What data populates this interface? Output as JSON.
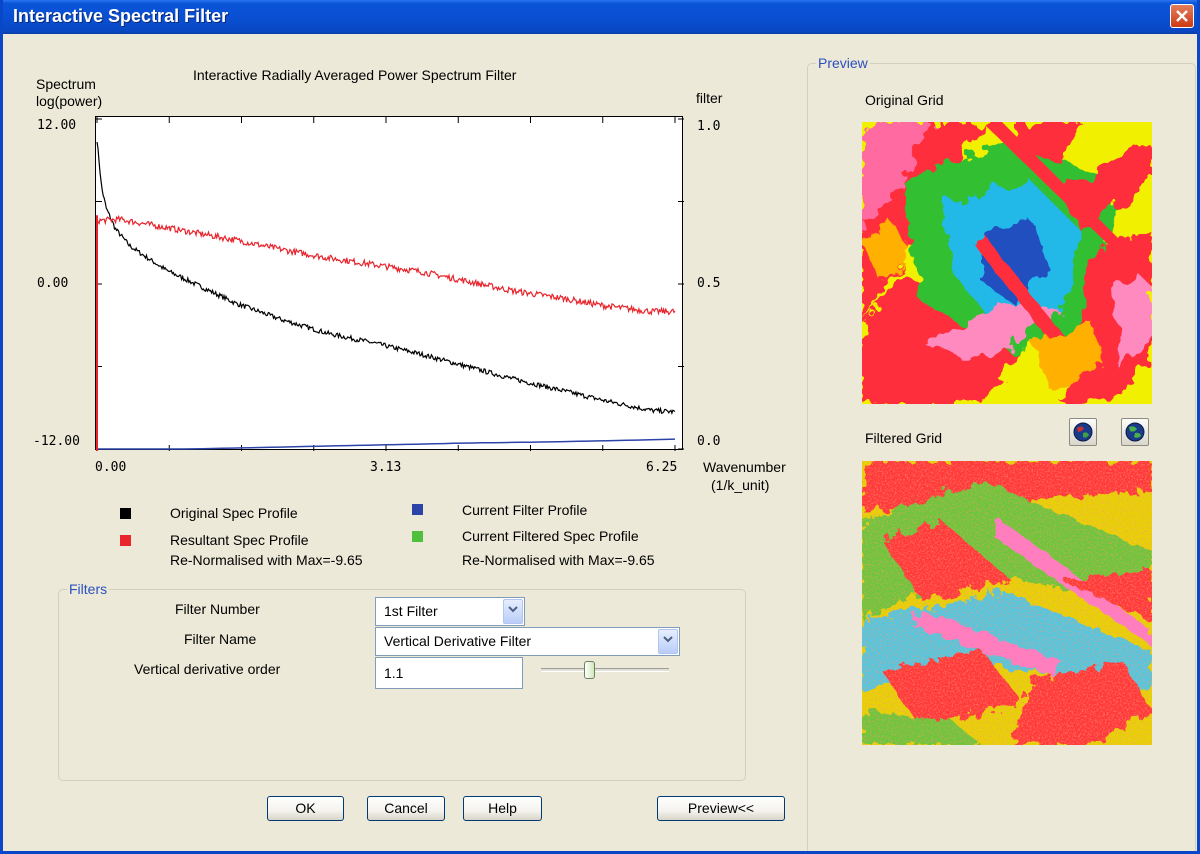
{
  "window": {
    "title": "Interactive Spectral Filter"
  },
  "plot": {
    "title": "Interactive Radially Averaged Power Spectrum Filter",
    "y_left_label_line1": "Spectrum",
    "y_left_label_line2": "log(power)",
    "y_right_label": "filter",
    "y_left_ticks": [
      "12.00",
      "0.00",
      "-12.00"
    ],
    "y_right_ticks": [
      "1.0",
      "0.5",
      "0.0"
    ],
    "x_ticks": [
      "0.00",
      "3.13",
      "6.25"
    ],
    "x_label_line1": "Wavenumber",
    "x_label_line2": "(1/k_unit)"
  },
  "chart_data": {
    "type": "line",
    "x_range": [
      0,
      6.25
    ],
    "y_left_range": [
      -12,
      12
    ],
    "y_right_range": [
      0,
      1
    ],
    "series": [
      {
        "name": "Original Spec Profile",
        "color": "#000000",
        "axis": "left",
        "x": [
          0.0,
          0.05,
          0.1,
          0.2,
          0.35,
          0.5,
          0.75,
          1.0,
          1.5,
          2.0,
          2.5,
          3.0,
          3.5,
          4.0,
          4.5,
          5.0,
          5.5,
          6.0,
          6.25
        ],
        "y": [
          10.5,
          7.0,
          5.5,
          4.0,
          2.8,
          2.1,
          1.0,
          0.2,
          -1.4,
          -2.6,
          -3.6,
          -4.3,
          -5.1,
          -6.0,
          -6.9,
          -7.7,
          -8.5,
          -9.2,
          -9.3
        ]
      },
      {
        "name": "Resultant Spec Profile",
        "color": "#e8242c",
        "axis": "left",
        "x": [
          0.0,
          0.25,
          0.5,
          1.0,
          1.5,
          2.0,
          2.5,
          3.0,
          3.5,
          4.0,
          4.5,
          5.0,
          5.5,
          6.0,
          6.25
        ],
        "y": [
          4.6,
          4.7,
          4.4,
          3.8,
          3.2,
          2.5,
          1.9,
          1.4,
          0.9,
          0.2,
          -0.5,
          -1.0,
          -1.6,
          -2.0,
          -2.0
        ]
      },
      {
        "name": "Current Filter Profile",
        "color": "#2c43a8",
        "axis": "right",
        "x": [
          0.0,
          1.0,
          2.0,
          3.0,
          4.0,
          5.0,
          6.0,
          6.25
        ],
        "y": [
          0.0,
          0.0,
          0.006,
          0.012,
          0.018,
          0.022,
          0.028,
          0.03
        ]
      }
    ]
  },
  "legend": {
    "items": [
      {
        "label": "Original Spec Profile",
        "color": "#000000"
      },
      {
        "label": "Current Filter Profile",
        "color": "#2c43a8"
      },
      {
        "label": "Resultant Spec Profile",
        "color": "#e8242c"
      },
      {
        "label": "Current Filtered Spec Profile",
        "color": "#4fbf3c"
      }
    ],
    "renorm_left": "Re-Normalised with Max=-9.65",
    "renorm_right": "Re-Normalised with Max=-9.65"
  },
  "filters": {
    "legend": "Filters",
    "filter_number_label": "Filter Number",
    "filter_number_value": "1st Filter",
    "filter_name_label": "Filter Name",
    "filter_name_value": "Vertical Derivative Filter",
    "order_label": "Vertical derivative order",
    "order_value": "1.1",
    "order_slider_fraction": 0.35
  },
  "buttons": {
    "ok": "OK",
    "cancel": "Cancel",
    "help": "Help",
    "preview": "Preview<<"
  },
  "preview": {
    "legend": "Preview",
    "original_label": "Original Grid",
    "filtered_label": "Filtered Grid"
  }
}
